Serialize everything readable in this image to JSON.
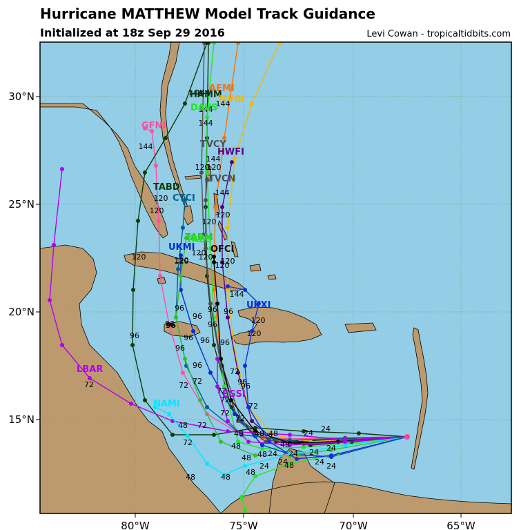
{
  "header": {
    "title": "Hurricane MATTHEW Model Track Guidance",
    "subtitle": "Initialized at 18z Sep 29 2016",
    "credit": "Levi Cowan - tropicaltidbits.com"
  },
  "map": {
    "colors": {
      "ocean": "#93cde6",
      "land": "#bd9a6e",
      "grid": "#6f9a80",
      "frame": "#000000"
    },
    "lon_ticks": [
      {
        "label": "80°W"
      },
      {
        "label": "75°W"
      },
      {
        "label": "70°W"
      },
      {
        "label": "65°W"
      }
    ],
    "lat_ticks": [
      {
        "label": "30°N"
      },
      {
        "label": "25°N"
      },
      {
        "label": "20°N"
      },
      {
        "label": "15°N"
      }
    ]
  },
  "models": [
    {
      "name": "AEMI",
      "color": "#ff7000"
    },
    {
      "name": "HAMM",
      "color": "#0b3a0b"
    },
    {
      "name": "NVGI",
      "color": "#f5b800"
    },
    {
      "name": "DAVS",
      "color": "#20e820"
    },
    {
      "name": "GFNI",
      "color": "#ff4fa0"
    },
    {
      "name": "TVCY",
      "color": "#505050"
    },
    {
      "name": "HWFI",
      "color": "#5a0080"
    },
    {
      "name": "TVCN",
      "color": "#505050"
    },
    {
      "name": "TABD",
      "color": "#0b3a0b"
    },
    {
      "name": "CTCI",
      "color": "#006090"
    },
    {
      "name": "UKMI",
      "color": "#0030d0"
    },
    {
      "name": "OFCI",
      "color": "#000000"
    },
    {
      "name": "TABM",
      "color": "#30c030"
    },
    {
      "name": "TABS",
      "color": "#20e820"
    },
    {
      "name": "UKXI",
      "color": "#1030e0"
    },
    {
      "name": "LBAR",
      "color": "#b000f0"
    },
    {
      "name": "NAMI",
      "color": "#00e8ff"
    },
    {
      "name": "EGSI",
      "color": "#b000f0"
    }
  ],
  "hour_labels": [
    "24",
    "48",
    "72",
    "96",
    "120",
    "144"
  ]
}
